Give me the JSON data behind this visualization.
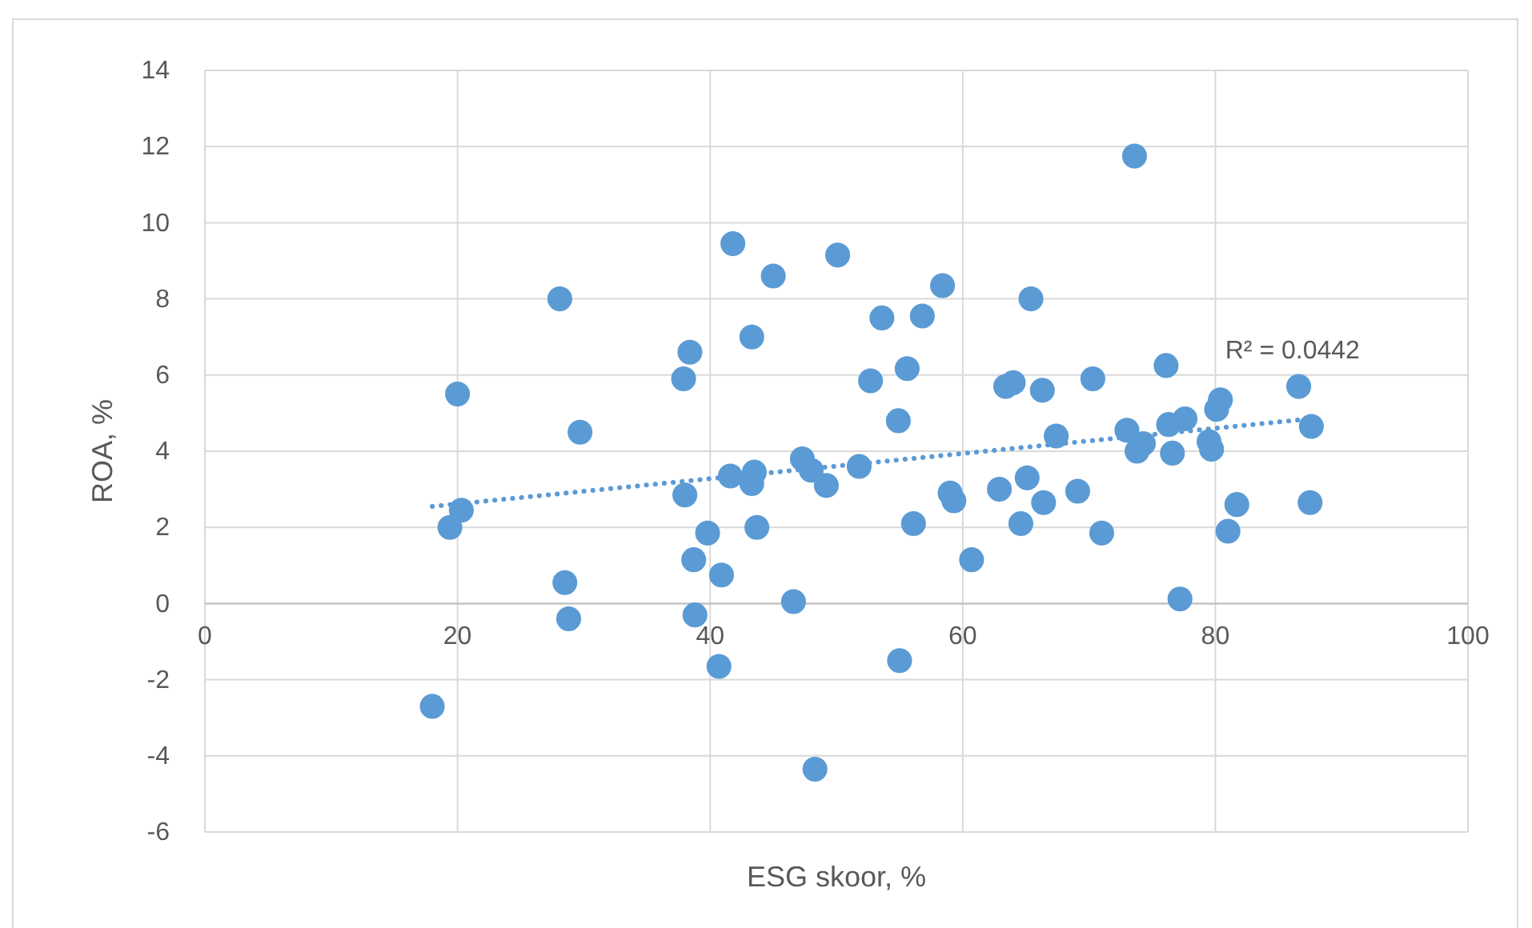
{
  "chart_data": {
    "type": "scatter",
    "xlabel": "ESG skoor, %",
    "ylabel": "ROA, %",
    "xlim": [
      0,
      100
    ],
    "xticks": [
      0,
      20,
      40,
      60,
      80,
      100
    ],
    "ylim": [
      -6,
      14
    ],
    "yticks": [
      -6,
      -4,
      -2,
      0,
      2,
      4,
      6,
      8,
      10,
      12,
      14
    ],
    "grid": true,
    "marker": "circle",
    "series": [
      {
        "color": "#5b9bd5",
        "x": [
          18,
          19.4,
          20,
          20.3,
          28.1,
          28.5,
          28.8,
          29.7,
          37.9,
          38.4,
          38,
          38.7,
          38.8,
          39.8,
          40.7,
          40.9,
          41.6,
          41.8,
          43.3,
          43.5,
          43.3,
          43.7,
          45,
          46.6,
          47.3,
          48,
          48.3,
          49.2,
          50.1,
          51.8,
          52.7,
          53.6,
          54.9,
          55,
          55.6,
          56.1,
          56.8,
          58.4,
          59,
          59.3,
          60.7,
          62.9,
          63.4,
          64,
          64.6,
          65.1,
          65.4,
          66.3,
          66.4,
          67.4,
          69.1,
          70.3,
          71,
          73,
          73.6,
          73.8,
          74.3,
          76.1,
          76.3,
          76.6,
          77.2,
          77.6,
          79.5,
          79.7,
          80.1,
          80.4,
          81,
          81.7,
          86.6,
          87.6,
          87.5
        ],
        "values": [
          -2.7,
          2,
          5.5,
          2.45,
          8,
          0.55,
          -0.4,
          4.5,
          5.9,
          6.6,
          2.85,
          1.15,
          -0.3,
          1.85,
          -1.65,
          0.75,
          3.35,
          9.45,
          7,
          3.45,
          3.15,
          2,
          8.6,
          0.05,
          3.8,
          3.5,
          -4.35,
          3.1,
          9.15,
          3.6,
          5.85,
          7.5,
          4.8,
          -1.5,
          6.17,
          2.1,
          7.55,
          8.35,
          2.9,
          2.7,
          1.15,
          3,
          5.7,
          5.8,
          2.1,
          3.3,
          8,
          5.6,
          2.65,
          4.4,
          2.95,
          5.9,
          1.85,
          4.55,
          11.75,
          4,
          4.2,
          6.25,
          4.7,
          3.95,
          0.12,
          4.85,
          4.25,
          4.05,
          5.1,
          5.35,
          1.9,
          2.6,
          5.7,
          4.65,
          2.65
        ]
      },
      {
        "type": "line",
        "marker": "none",
        "color": "#5b9bd5",
        "line_style": "dotted",
        "x": [
          18,
          87.5
        ],
        "values": [
          2.55,
          4.85
        ]
      }
    ],
    "annotations": [
      "R² = 0.0442"
    ]
  }
}
